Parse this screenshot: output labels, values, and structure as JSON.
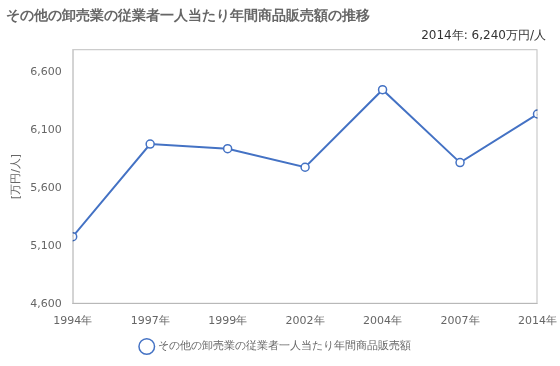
{
  "chart_data": {
    "type": "line",
    "title": "その他の卸売業の従業者一人当たり年間商品販売額の推移",
    "ylabel": "[万円/人]",
    "annotation": "2014年: 6,240万円/人",
    "categories": [
      "1994年",
      "1997年",
      "1999年",
      "2002年",
      "2004年",
      "2007年",
      "2014年"
    ],
    "series": [
      {
        "name": "その他の卸売業の従業者一人当たり年間商品販売額",
        "color": "#4472C4",
        "marker": "circle",
        "values": [
          5180,
          5980,
          5940,
          5780,
          6450,
          5820,
          6240
        ]
      }
    ],
    "ylim": [
      4600,
      6800
    ],
    "yticks": [
      {
        "value": 4600,
        "label": "4,600"
      },
      {
        "value": 5100,
        "label": "5,100"
      },
      {
        "value": 5600,
        "label": "5,600"
      },
      {
        "value": 6100,
        "label": "6,100"
      },
      {
        "value": 6600,
        "label": "6,600"
      }
    ],
    "grid": false,
    "legend": "bottom"
  }
}
